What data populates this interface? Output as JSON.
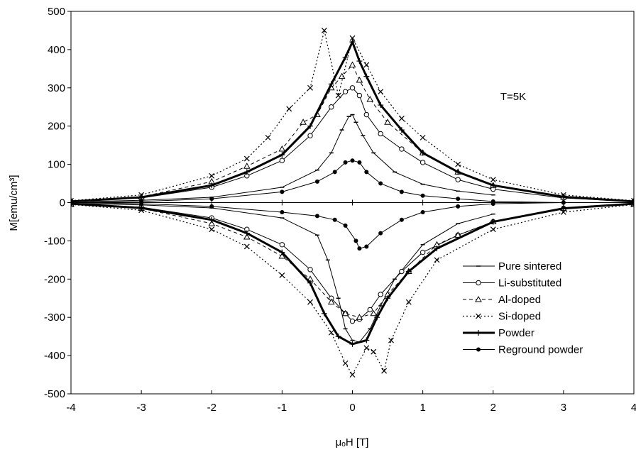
{
  "chart_data": {
    "type": "line",
    "title": "",
    "annotation": "T=5K",
    "xlabel": "μₒH [T]",
    "ylabel": "M[emu/cm³]",
    "xlim": [
      -4,
      4
    ],
    "ylim": [
      -500,
      500
    ],
    "x_ticks": [
      -4,
      -3,
      -2,
      -1,
      0,
      1,
      2,
      3,
      4
    ],
    "y_ticks": [
      -500,
      -400,
      -300,
      -200,
      -100,
      0,
      100,
      200,
      300,
      400,
      500
    ],
    "grid": false,
    "legend_position": "bottom-right",
    "series": [
      {
        "name": "Pure sintered",
        "marker": "dash",
        "line": "solid-thin",
        "upper": [
          [
            -4,
            2
          ],
          [
            -3,
            6
          ],
          [
            -2,
            14
          ],
          [
            -1,
            40
          ],
          [
            -0.5,
            85
          ],
          [
            -0.3,
            130
          ],
          [
            -0.15,
            190
          ],
          [
            -0.05,
            225
          ],
          [
            0,
            230
          ],
          [
            0.05,
            210
          ],
          [
            0.15,
            175
          ],
          [
            0.3,
            130
          ],
          [
            0.6,
            80
          ],
          [
            1,
            48
          ],
          [
            1.5,
            30
          ],
          [
            2,
            20
          ]
        ],
        "lower": [
          [
            -4,
            -2
          ],
          [
            -3,
            -6
          ],
          [
            -2,
            -14
          ],
          [
            -1,
            -40
          ],
          [
            -0.5,
            -85
          ],
          [
            -0.35,
            -150
          ],
          [
            -0.2,
            -250
          ],
          [
            -0.1,
            -330
          ],
          [
            0,
            -360
          ],
          [
            0.1,
            -365
          ],
          [
            0.25,
            -330
          ],
          [
            0.4,
            -270
          ],
          [
            0.6,
            -200
          ],
          [
            1,
            -110
          ],
          [
            1.5,
            -55
          ],
          [
            2,
            -30
          ]
        ]
      },
      {
        "name": "Li-substituted",
        "marker": "circle",
        "line": "solid-thin",
        "upper": [
          [
            -4,
            3
          ],
          [
            -3,
            12
          ],
          [
            -2,
            40
          ],
          [
            -1.5,
            70
          ],
          [
            -1,
            110
          ],
          [
            -0.6,
            175
          ],
          [
            -0.3,
            250
          ],
          [
            -0.1,
            290
          ],
          [
            0,
            300
          ],
          [
            0.1,
            280
          ],
          [
            0.2,
            230
          ],
          [
            0.4,
            180
          ],
          [
            0.7,
            140
          ],
          [
            1,
            105
          ],
          [
            1.5,
            60
          ],
          [
            2,
            35
          ],
          [
            3,
            12
          ],
          [
            4,
            3
          ]
        ],
        "lower": [
          [
            -4,
            -3
          ],
          [
            -3,
            -12
          ],
          [
            -2,
            -40
          ],
          [
            -1.5,
            -70
          ],
          [
            -1,
            -110
          ],
          [
            -0.6,
            -175
          ],
          [
            -0.3,
            -250
          ],
          [
            -0.1,
            -290
          ],
          [
            0,
            -310
          ],
          [
            0.1,
            -305
          ],
          [
            0.25,
            -280
          ],
          [
            0.4,
            -240
          ],
          [
            0.7,
            -180
          ],
          [
            1,
            -130
          ],
          [
            1.5,
            -85
          ],
          [
            2,
            -50
          ],
          [
            3,
            -15
          ],
          [
            4,
            -4
          ]
        ]
      },
      {
        "name": "Al-doped",
        "marker": "triangle",
        "line": "dashed",
        "upper": [
          [
            -4,
            4
          ],
          [
            -3,
            15
          ],
          [
            -2,
            55
          ],
          [
            -1.5,
            95
          ],
          [
            -1,
            140
          ],
          [
            -0.7,
            210
          ],
          [
            -0.5,
            230
          ],
          [
            -0.3,
            300
          ],
          [
            -0.15,
            330
          ],
          [
            0,
            360
          ],
          [
            0.1,
            320
          ],
          [
            0.25,
            270
          ],
          [
            0.5,
            210
          ],
          [
            1,
            130
          ],
          [
            1.5,
            80
          ],
          [
            2,
            45
          ],
          [
            3,
            15
          ],
          [
            4,
            4
          ]
        ],
        "lower": [
          [
            -4,
            -4
          ],
          [
            -3,
            -15
          ],
          [
            -2,
            -55
          ],
          [
            -1.5,
            -90
          ],
          [
            -1,
            -140
          ],
          [
            -0.6,
            -200
          ],
          [
            -0.3,
            -260
          ],
          [
            -0.1,
            -290
          ],
          [
            0.1,
            -300
          ],
          [
            0.3,
            -290
          ],
          [
            0.5,
            -240
          ],
          [
            0.8,
            -180
          ],
          [
            1.2,
            -110
          ],
          [
            1.5,
            -85
          ],
          [
            2,
            -50
          ],
          [
            3,
            -15
          ],
          [
            4,
            -4
          ]
        ]
      },
      {
        "name": "Si-doped",
        "marker": "x",
        "line": "dotted",
        "upper": [
          [
            -4,
            5
          ],
          [
            -3,
            20
          ],
          [
            -2,
            70
          ],
          [
            -1.5,
            115
          ],
          [
            -1.2,
            170
          ],
          [
            -0.9,
            245
          ],
          [
            -0.6,
            300
          ],
          [
            -0.4,
            450
          ],
          [
            -0.2,
            280
          ],
          [
            0,
            430
          ],
          [
            0.2,
            360
          ],
          [
            0.4,
            290
          ],
          [
            0.7,
            220
          ],
          [
            1,
            170
          ],
          [
            1.5,
            100
          ],
          [
            2,
            60
          ],
          [
            3,
            20
          ],
          [
            4,
            5
          ]
        ],
        "lower": [
          [
            -4,
            -5
          ],
          [
            -3,
            -20
          ],
          [
            -2,
            -70
          ],
          [
            -1.5,
            -115
          ],
          [
            -1,
            -190
          ],
          [
            -0.6,
            -260
          ],
          [
            -0.3,
            -340
          ],
          [
            -0.1,
            -420
          ],
          [
            0,
            -450
          ],
          [
            0.2,
            -380
          ],
          [
            0.3,
            -390
          ],
          [
            0.45,
            -440
          ],
          [
            0.55,
            -360
          ],
          [
            0.8,
            -260
          ],
          [
            1.2,
            -150
          ],
          [
            2,
            -70
          ],
          [
            3,
            -25
          ],
          [
            4,
            -5
          ]
        ]
      },
      {
        "name": "Powder",
        "marker": "plus",
        "line": "bold",
        "upper": [
          [
            -4,
            3
          ],
          [
            -3,
            14
          ],
          [
            -2,
            45
          ],
          [
            -1.5,
            80
          ],
          [
            -1,
            125
          ],
          [
            -0.6,
            200
          ],
          [
            -0.3,
            310
          ],
          [
            -0.1,
            380
          ],
          [
            0,
            420
          ],
          [
            0.1,
            370
          ],
          [
            0.2,
            330
          ],
          [
            0.4,
            255
          ],
          [
            0.7,
            190
          ],
          [
            1,
            130
          ],
          [
            1.5,
            80
          ],
          [
            2,
            45
          ],
          [
            3,
            15
          ],
          [
            4,
            3
          ]
        ],
        "lower": [
          [
            -4,
            -3
          ],
          [
            -3,
            -14
          ],
          [
            -2,
            -45
          ],
          [
            -1.5,
            -80
          ],
          [
            -1,
            -130
          ],
          [
            -0.6,
            -210
          ],
          [
            -0.4,
            -290
          ],
          [
            -0.2,
            -350
          ],
          [
            0,
            -370
          ],
          [
            0.2,
            -360
          ],
          [
            0.35,
            -300
          ],
          [
            0.5,
            -250
          ],
          [
            0.8,
            -180
          ],
          [
            1.2,
            -120
          ],
          [
            2,
            -50
          ],
          [
            3,
            -15
          ],
          [
            4,
            -3
          ]
        ]
      },
      {
        "name": "Reground powder",
        "marker": "dot",
        "line": "solid-thin",
        "upper": [
          [
            -4,
            0
          ],
          [
            -3,
            3
          ],
          [
            -2,
            10
          ],
          [
            -1,
            28
          ],
          [
            -0.5,
            55
          ],
          [
            -0.25,
            80
          ],
          [
            -0.1,
            105
          ],
          [
            0,
            110
          ],
          [
            0.1,
            105
          ],
          [
            0.2,
            80
          ],
          [
            0.4,
            50
          ],
          [
            0.7,
            28
          ],
          [
            1,
            18
          ],
          [
            1.5,
            10
          ],
          [
            2,
            3
          ],
          [
            3,
            0
          ],
          [
            4,
            0
          ]
        ],
        "lower": [
          [
            -4,
            0
          ],
          [
            -3,
            -3
          ],
          [
            -2,
            -10
          ],
          [
            -1,
            -25
          ],
          [
            -0.5,
            -35
          ],
          [
            -0.25,
            -45
          ],
          [
            -0.1,
            -60
          ],
          [
            0.05,
            -100
          ],
          [
            0.1,
            -120
          ],
          [
            0.2,
            -115
          ],
          [
            0.4,
            -80
          ],
          [
            0.7,
            -45
          ],
          [
            1,
            -25
          ],
          [
            1.5,
            -10
          ],
          [
            2,
            -3
          ],
          [
            3,
            0
          ],
          [
            4,
            0
          ]
        ]
      }
    ]
  }
}
